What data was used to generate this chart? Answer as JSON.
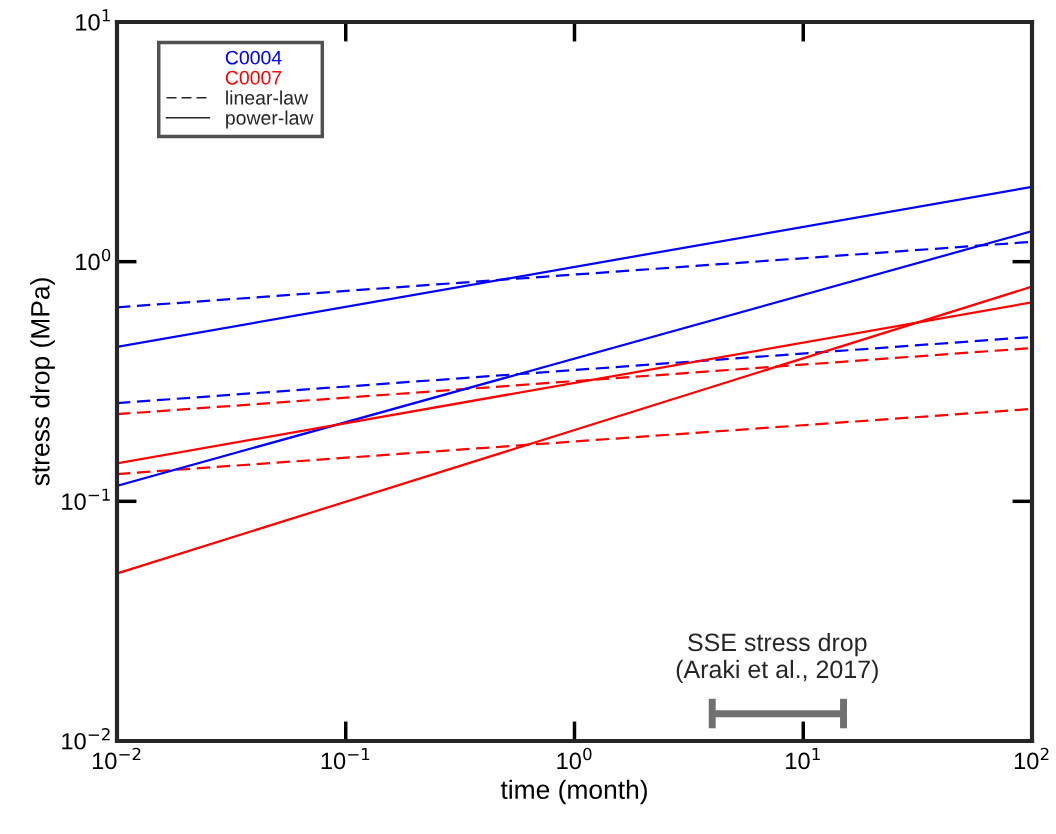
{
  "chart_data": {
    "type": "line",
    "xlabel": "time (month)",
    "ylabel": "stress drop (MPa)",
    "log": "xy",
    "grid": false,
    "legend": "top left",
    "marker": "none",
    "xlim": [
      0.01,
      100
    ],
    "ylim": [
      0.01,
      10
    ],
    "xticks": [
      {
        "value": 0.01,
        "label": "10$^{−2}$"
      },
      {
        "value": 0.1,
        "label": "10$^{−1}$"
      },
      {
        "value": 1,
        "label": "10$^{0}$"
      },
      {
        "value": 10,
        "label": "10$^{1}$"
      },
      {
        "value": 100,
        "label": "10$^{2}$"
      }
    ],
    "yticks": [
      {
        "value": 0.01,
        "label": "10$^{−2}$"
      },
      {
        "value": 0.1,
        "label": "10$^{−1}$"
      },
      {
        "value": 1,
        "label": "10$^{0}$"
      },
      {
        "value": 10,
        "label": "10$^{1}$"
      }
    ],
    "series": [
      {
        "name": "C0004",
        "color": "#0000ff",
        "line_style": "dashed",
        "x": [
          0.01,
          100
        ],
        "values": [
          0.645,
          1.21
        ]
      },
      {
        "color": "#0000ff",
        "line_style": "dashed",
        "x": [
          0.01,
          100
        ],
        "values": [
          0.257,
          0.485
        ]
      },
      {
        "name": "C0007",
        "color": "#ff0000",
        "line_style": "dashed",
        "x": [
          0.01,
          100
        ],
        "values": [
          0.231,
          0.436
        ]
      },
      {
        "color": "#ff0000",
        "line_style": "dashed",
        "x": [
          0.01,
          100
        ],
        "values": [
          0.13,
          0.243
        ]
      },
      {
        "color": "#0000ff",
        "line_style": "solid",
        "x": [
          0.01,
          100
        ],
        "values": [
          0.441,
          2.05
        ]
      },
      {
        "color": "#0000ff",
        "line_style": "solid",
        "x": [
          0.01,
          100
        ],
        "values": [
          0.116,
          1.34
        ]
      },
      {
        "color": "#ff0000",
        "line_style": "solid",
        "x": [
          0.01,
          100
        ],
        "values": [
          0.144,
          0.676
        ]
      },
      {
        "color": "#ff0000",
        "line_style": "solid",
        "x": [
          0.01,
          100
        ],
        "values": [
          0.05,
          0.787
        ]
      },
      {
        "color": "#707070",
        "line_style": "solid",
        "x": [
          4,
          15
        ],
        "values": [
          0.013,
          0.013
        ],
        "errors": [
          [
            0.0113,
            0.015
          ],
          [
            0.0113,
            0.015
          ]
        ]
      }
    ],
    "annotations": [
      {
        "text": "SSE stress drop\n(Araki et al., 2017)",
        "x": 7.7,
        "y": 0.013
      },
      "linear-law",
      "power-law"
    ]
  }
}
